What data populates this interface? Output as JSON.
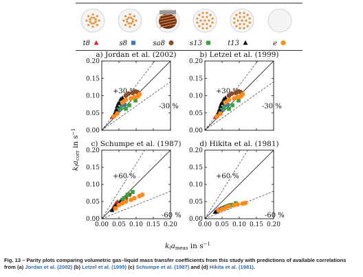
{
  "legend": {
    "items": [
      {
        "label": "t8",
        "marker": "triangle",
        "color": "#d62728"
      },
      {
        "label": "s8",
        "marker": "square",
        "color": "#3a78b5"
      },
      {
        "label": "sa8",
        "marker": "circle",
        "color": "#8b4a2b"
      },
      {
        "label": "s13",
        "marker": "square",
        "color": "#3aa23a"
      },
      {
        "label": "t13",
        "marker": "triangle",
        "color": "#111111"
      },
      {
        "label": "e",
        "marker": "circle",
        "color": "#ff8c1a"
      }
    ]
  },
  "axes": {
    "ylabel": "k_l a_corr in s^-1",
    "xlabel": "k_l a_meas in s^-1"
  },
  "caption": {
    "fig": "Fig. 13 – ",
    "text1": "Parity plots comparing volumetric gas–liquid mass transfer coefficients from this study with predictions of available correlations from (a) ",
    "ref_a": "Jordan et al. (2002)",
    "mid_b": " (b) ",
    "ref_b": "Letzel et al. (1999)",
    "mid_c": " (c) ",
    "ref_c": "Schumpe et al. (1987)",
    "mid_d": " and (d) ",
    "ref_d": "Hikita et al. (1981)",
    "end": "."
  },
  "chart_data": [
    {
      "type": "scatter",
      "title": "a) Jordan et al. (2002)",
      "xlim": [
        0,
        0.2
      ],
      "ylim": [
        0,
        0.2
      ],
      "xticks": [
        "0.00",
        "0.05",
        "0.10",
        "0.15",
        "0.20"
      ],
      "yticks": [
        "0.00",
        "0.05",
        "0.10",
        "0.15",
        "0.20"
      ],
      "band_pct": 30,
      "band_labels": [
        "+30 %",
        "-30 %"
      ],
      "series": [
        {
          "name": "t8",
          "values": [
            [
              0.03,
              0.038
            ],
            [
              0.035,
              0.042
            ],
            [
              0.04,
              0.05
            ]
          ]
        },
        {
          "name": "s8",
          "values": [
            [
              0.048,
              0.058
            ],
            [
              0.058,
              0.072
            ],
            [
              0.066,
              0.074
            ]
          ]
        },
        {
          "name": "sa8",
          "values": [
            [
              0.07,
              0.1
            ],
            [
              0.078,
              0.106
            ],
            [
              0.09,
              0.108
            ],
            [
              0.098,
              0.112
            ],
            [
              0.104,
              0.11
            ]
          ]
        },
        {
          "name": "s13",
          "values": [
            [
              0.055,
              0.064
            ],
            [
              0.062,
              0.082
            ],
            [
              0.07,
              0.062
            ],
            [
              0.08,
              0.072
            ],
            [
              0.098,
              0.086
            ]
          ]
        },
        {
          "name": "t13",
          "values": [
            [
              0.038,
              0.05
            ],
            [
              0.042,
              0.06
            ],
            [
              0.045,
              0.07
            ],
            [
              0.048,
              0.078
            ],
            [
              0.052,
              0.08
            ],
            [
              0.055,
              0.09
            ],
            [
              0.06,
              0.094
            ]
          ]
        },
        {
          "name": "e",
          "values": [
            [
              0.035,
              0.04
            ],
            [
              0.045,
              0.048
            ],
            [
              0.06,
              0.08
            ],
            [
              0.07,
              0.088
            ],
            [
              0.085,
              0.092
            ],
            [
              0.095,
              0.096
            ],
            [
              0.105,
              0.098
            ],
            [
              0.11,
              0.104
            ]
          ]
        }
      ]
    },
    {
      "type": "scatter",
      "title": "b) Letzel et al. (1999)",
      "xlim": [
        0,
        0.2
      ],
      "ylim": [
        0,
        0.2
      ],
      "xticks": [
        "0.00",
        "0.05",
        "0.10",
        "0.15",
        "0.20"
      ],
      "yticks": [
        "0.00",
        "0.05",
        "0.10",
        "0.15",
        "0.20"
      ],
      "band_pct": 30,
      "band_labels": [
        "+30 %",
        "-30 %"
      ],
      "series": [
        {
          "name": "t8",
          "values": [
            [
              0.03,
              0.038
            ],
            [
              0.035,
              0.042
            ],
            [
              0.04,
              0.05
            ]
          ]
        },
        {
          "name": "s8",
          "values": [
            [
              0.048,
              0.058
            ],
            [
              0.058,
              0.072
            ],
            [
              0.066,
              0.074
            ]
          ]
        },
        {
          "name": "sa8",
          "values": [
            [
              0.07,
              0.1
            ],
            [
              0.078,
              0.106
            ],
            [
              0.09,
              0.108
            ],
            [
              0.098,
              0.112
            ],
            [
              0.104,
              0.11
            ]
          ]
        },
        {
          "name": "s13",
          "values": [
            [
              0.055,
              0.064
            ],
            [
              0.062,
              0.082
            ],
            [
              0.07,
              0.062
            ],
            [
              0.08,
              0.072
            ],
            [
              0.098,
              0.086
            ]
          ]
        },
        {
          "name": "t13",
          "values": [
            [
              0.038,
              0.05
            ],
            [
              0.042,
              0.06
            ],
            [
              0.045,
              0.07
            ],
            [
              0.048,
              0.078
            ],
            [
              0.052,
              0.08
            ],
            [
              0.055,
              0.09
            ],
            [
              0.06,
              0.094
            ]
          ]
        },
        {
          "name": "e",
          "values": [
            [
              0.035,
              0.04
            ],
            [
              0.045,
              0.048
            ],
            [
              0.06,
              0.08
            ],
            [
              0.07,
              0.088
            ],
            [
              0.085,
              0.092
            ],
            [
              0.095,
              0.096
            ],
            [
              0.105,
              0.098
            ],
            [
              0.11,
              0.104
            ]
          ]
        }
      ]
    },
    {
      "type": "scatter",
      "title": "c) Schumpe et al. (1987)",
      "xlim": [
        0,
        0.2
      ],
      "ylim": [
        0,
        0.2
      ],
      "xticks": [
        "0.00",
        "0.05",
        "0.10",
        "0.15",
        "0.20"
      ],
      "yticks": [
        "0.00",
        "0.05",
        "0.10",
        "0.15",
        "0.20"
      ],
      "band_pct": 60,
      "band_labels": [
        "+60 %",
        "-60 %"
      ],
      "series": [
        {
          "name": "t8",
          "values": [
            [
              0.035,
              0.036
            ],
            [
              0.04,
              0.044
            ],
            [
              0.045,
              0.05
            ]
          ]
        },
        {
          "name": "s8",
          "values": [
            [
              0.05,
              0.042
            ],
            [
              0.06,
              0.055
            ],
            [
              0.07,
              0.06
            ]
          ]
        },
        {
          "name": "sa8",
          "values": [
            [
              0.06,
              0.05
            ],
            [
              0.07,
              0.06
            ],
            [
              0.08,
              0.07
            ]
          ]
        },
        {
          "name": "s13",
          "values": [
            [
              0.055,
              0.05
            ],
            [
              0.065,
              0.06
            ],
            [
              0.075,
              0.07
            ],
            [
              0.09,
              0.078
            ]
          ]
        },
        {
          "name": "t13",
          "values": [
            [
              0.03,
              0.025
            ],
            [
              0.035,
              0.03
            ],
            [
              0.04,
              0.038
            ],
            [
              0.045,
              0.04
            ],
            [
              0.05,
              0.045
            ],
            [
              0.055,
              0.05
            ]
          ]
        },
        {
          "name": "e",
          "values": [
            [
              0.04,
              0.03
            ],
            [
              0.05,
              0.04
            ],
            [
              0.06,
              0.045
            ],
            [
              0.07,
              0.05
            ],
            [
              0.085,
              0.055
            ],
            [
              0.095,
              0.06
            ],
            [
              0.11,
              0.066
            ],
            [
              0.118,
              0.07
            ]
          ]
        }
      ]
    },
    {
      "type": "scatter",
      "title": "d) Hikita et al. (1981)",
      "xlim": [
        0,
        0.2
      ],
      "ylim": [
        0,
        0.2
      ],
      "xticks": [
        "0.00",
        "0.05",
        "0.10",
        "0.15",
        "0.20"
      ],
      "yticks": [
        "0.00",
        "0.05",
        "0.10",
        "0.15",
        "0.20"
      ],
      "band_pct": 60,
      "band_labels": [
        "+60 %",
        "-60 %"
      ],
      "series": [
        {
          "name": "t8",
          "values": [
            [
              0.035,
              0.025
            ],
            [
              0.04,
              0.028
            ],
            [
              0.045,
              0.03
            ]
          ]
        },
        {
          "name": "s8",
          "values": [
            [
              0.05,
              0.03
            ],
            [
              0.06,
              0.034
            ],
            [
              0.07,
              0.038
            ]
          ]
        },
        {
          "name": "sa8",
          "values": [
            [
              0.06,
              0.034
            ],
            [
              0.07,
              0.038
            ],
            [
              0.08,
              0.04
            ]
          ]
        },
        {
          "name": "s13",
          "values": [
            [
              0.055,
              0.032
            ],
            [
              0.065,
              0.036
            ],
            [
              0.075,
              0.04
            ],
            [
              0.09,
              0.045
            ]
          ]
        },
        {
          "name": "t13",
          "values": [
            [
              0.03,
              0.02
            ],
            [
              0.035,
              0.022
            ],
            [
              0.04,
              0.025
            ],
            [
              0.045,
              0.028
            ],
            [
              0.05,
              0.03
            ],
            [
              0.055,
              0.032
            ]
          ]
        },
        {
          "name": "e",
          "values": [
            [
              0.04,
              0.024
            ],
            [
              0.05,
              0.028
            ],
            [
              0.06,
              0.032
            ],
            [
              0.07,
              0.036
            ],
            [
              0.085,
              0.04
            ],
            [
              0.095,
              0.042
            ],
            [
              0.11,
              0.044
            ],
            [
              0.118,
              0.046
            ]
          ]
        }
      ]
    }
  ]
}
